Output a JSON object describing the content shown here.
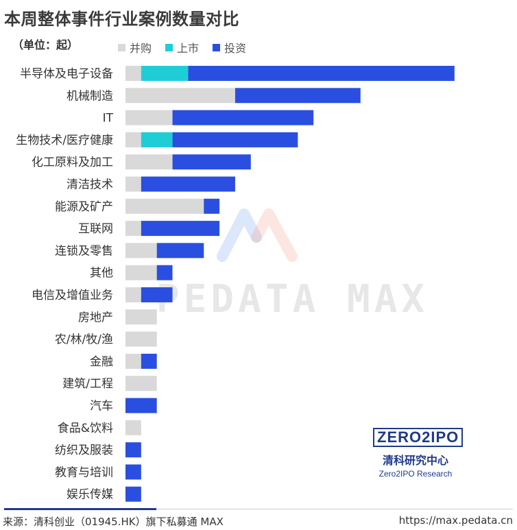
{
  "title": "本周整体事件行业案例数量对比",
  "unit_label": "（单位：起）",
  "legend": [
    {
      "label": "并购",
      "color": "#d9d9d9"
    },
    {
      "label": "上市",
      "color": "#1fcdd6"
    },
    {
      "label": "投资",
      "color": "#2a4fe0"
    }
  ],
  "chart_data": {
    "type": "bar",
    "orientation": "horizontal",
    "stacked": true,
    "title": "本周整体事件行业案例数量对比",
    "unit": "单位：起",
    "categories": [
      "半导体及电子设备",
      "机械制造",
      "IT",
      "生物技术/医疗健康",
      "化工原料及加工",
      "清洁技术",
      "能源及矿产",
      "互联网",
      "连锁及零售",
      "其他",
      "电信及增值业务",
      "房地产",
      "农/林/牧/渔",
      "金融",
      "建筑/工程",
      "汽车",
      "食品&饮料",
      "纺织及服装",
      "教育与培训",
      "娱乐传媒"
    ],
    "series": [
      {
        "name": "并购",
        "color": "#d9d9d9",
        "values": [
          1,
          7,
          3,
          1,
          3,
          1,
          5,
          1,
          2,
          2,
          1,
          2,
          2,
          1,
          2,
          0,
          1,
          0,
          0,
          0
        ]
      },
      {
        "name": "上市",
        "color": "#1fcdd6",
        "values": [
          3,
          0,
          0,
          2,
          0,
          0,
          0,
          0,
          0,
          0,
          0,
          0,
          0,
          0,
          0,
          0,
          0,
          0,
          0,
          0
        ]
      },
      {
        "name": "投资",
        "color": "#2a4fe0",
        "values": [
          17,
          8,
          9,
          8,
          5,
          6,
          1,
          5,
          3,
          1,
          2,
          0,
          0,
          1,
          0,
          2,
          0,
          1,
          1,
          1
        ]
      }
    ],
    "legend_position": "top",
    "grid": false,
    "xlim": [
      0,
      21
    ]
  },
  "watermark": "PEDATA MAX",
  "brand": {
    "logo": "ZERO2IPO",
    "cn": "清科研究中心",
    "en": "Zero2IPO Research"
  },
  "footer": {
    "source": "来源：清科创业（01945.HK）旗下私募通 MAX",
    "url": "https://max.pedata.cn"
  }
}
